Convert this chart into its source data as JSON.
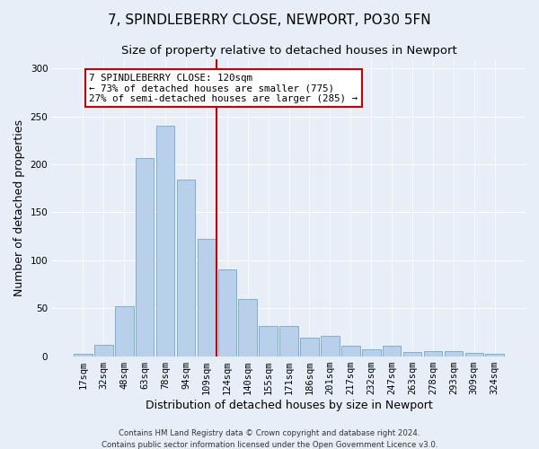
{
  "title1": "7, SPINDLEBERRY CLOSE, NEWPORT, PO30 5FN",
  "title2": "Size of property relative to detached houses in Newport",
  "xlabel": "Distribution of detached houses by size in Newport",
  "ylabel": "Number of detached properties",
  "categories": [
    "17sqm",
    "32sqm",
    "48sqm",
    "63sqm",
    "78sqm",
    "94sqm",
    "109sqm",
    "124sqm",
    "140sqm",
    "155sqm",
    "171sqm",
    "186sqm",
    "201sqm",
    "217sqm",
    "232sqm",
    "247sqm",
    "263sqm",
    "278sqm",
    "293sqm",
    "309sqm",
    "324sqm"
  ],
  "values": [
    2,
    12,
    52,
    207,
    240,
    184,
    122,
    90,
    60,
    31,
    31,
    19,
    21,
    11,
    7,
    11,
    4,
    5,
    5,
    3,
    2
  ],
  "bar_color": "#b8d0ea",
  "bar_edge_color": "#7aafd4",
  "vline_color": "#cc0000",
  "annotation_text": "7 SPINDLEBERRY CLOSE: 120sqm\n← 73% of detached houses are smaller (775)\n27% of semi-detached houses are larger (285) →",
  "annotation_box_color": "#ffffff",
  "annotation_box_edge_color": "#cc0000",
  "footer1": "Contains HM Land Registry data © Crown copyright and database right 2024.",
  "footer2": "Contains public sector information licensed under the Open Government Licence v3.0.",
  "ylim": [
    0,
    310
  ],
  "yticks": [
    0,
    50,
    100,
    150,
    200,
    250,
    300
  ],
  "bg_color": "#e8eef8",
  "title1_fontsize": 11,
  "title2_fontsize": 9.5,
  "tick_fontsize": 7.5,
  "ylabel_fontsize": 9,
  "xlabel_fontsize": 9,
  "annotation_fontsize": 7.8,
  "footer_fontsize": 6.2
}
